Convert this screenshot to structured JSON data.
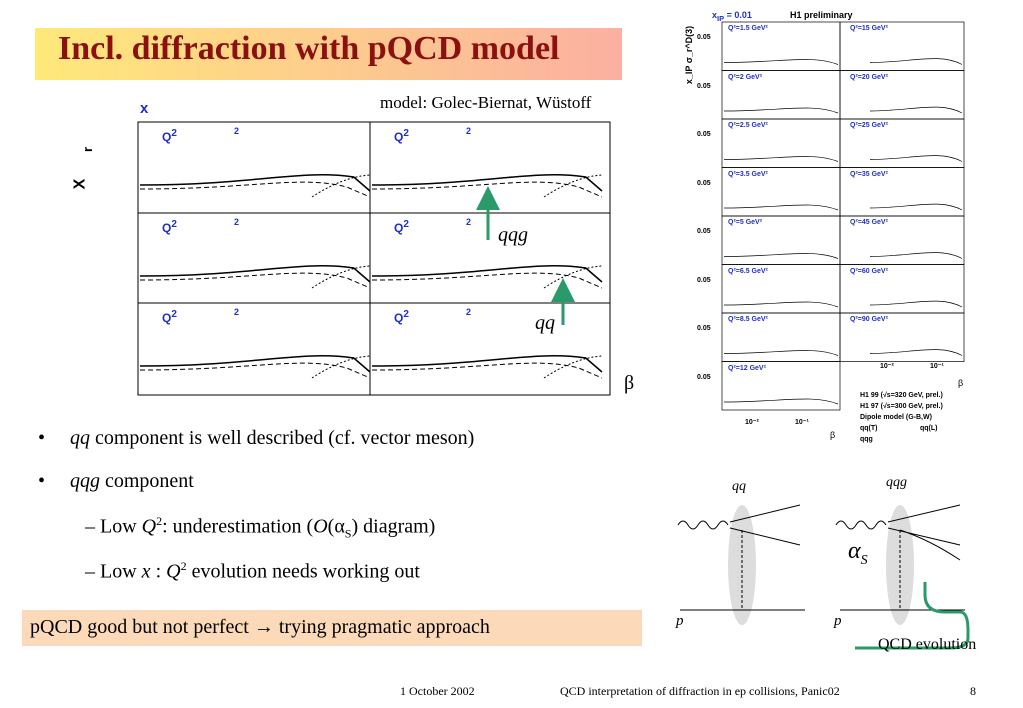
{
  "title": "Incl. diffraction with pQCD model",
  "model_note": "model: Golec-Biernat, Wüstoff",
  "left_plot": {
    "x_label": "x",
    "y_label_main": "X",
    "y_label_sub": "r",
    "panel_label": "Q",
    "panel_sup": "2",
    "panel_unit": "2",
    "qqg": "qqg",
    "qq": "qq",
    "beta": "β"
  },
  "right_plot": {
    "header": "x",
    "header_sub": "IP",
    "header_rest": " = 0.01",
    "preliminary": "H1 preliminary",
    "y_label": "x_IP σ_r^D(3)",
    "ytick": "0.05",
    "left_panels": [
      "Q²=1.5 GeV²",
      "Q²=2 GeV²",
      "Q²=2.5 GeV²",
      "Q²=3.5 GeV²",
      "Q²=5 GeV²",
      "Q²=6.5 GeV²",
      "Q²=8.5 GeV²",
      "Q²=12 GeV²"
    ],
    "right_panels": [
      "Q²=15 GeV²",
      "Q²=20 GeV²",
      "Q²=25 GeV²",
      "Q²=35 GeV²",
      "Q²=45 GeV²",
      "Q²=60 GeV²",
      "Q²=90 GeV²"
    ],
    "xticks": [
      "10⁻²",
      "10⁻¹"
    ],
    "beta": "β",
    "legend": [
      "H1 99 (√s=320 GeV, prel.)",
      "H1 97 (√s=300 GeV, prel.)",
      "Dipole model (G-B,W)",
      "qq(T)",
      "qq(L)",
      "qqg"
    ]
  },
  "bullets": {
    "b1": [
      "qq",
      " component is well described (cf. vector meson)"
    ],
    "b2": [
      "qqg",
      " component"
    ],
    "s1": [
      "Low ",
      "Q",
      "2",
      ": underestimation (",
      "O",
      "(α",
      "S",
      ")  diagram)"
    ],
    "s2": [
      "Low ",
      "x",
      " : ",
      "Q",
      "2",
      " evolution needs working out"
    ]
  },
  "callout": "pQCD good but not perfect → trying pragmatic approach",
  "diagram": {
    "qq": "qq",
    "qqg": "qqg",
    "alpha": "α",
    "alpha_sub": "S",
    "p": "p",
    "evolution": "QCD evolution"
  },
  "footer": {
    "date": "1 October 2002",
    "talk": "QCD interpretation of diffraction in ep collisions, Panic02",
    "page": "8"
  }
}
